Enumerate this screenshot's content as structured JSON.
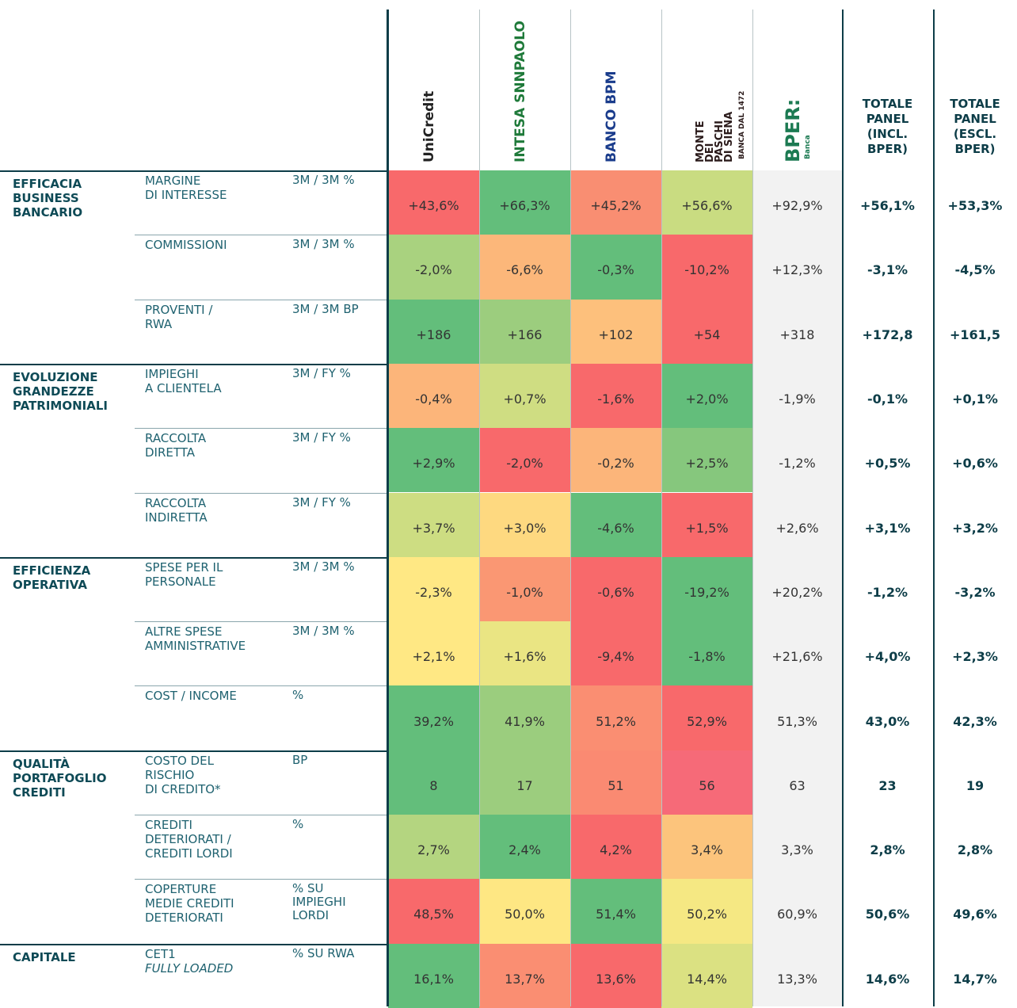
{
  "header": {
    "banks": [
      {
        "name": "UniCredit",
        "color": "#222222"
      },
      {
        "name": "INTESA SNNPAOLO",
        "color": "#1f7a3a"
      },
      {
        "name": "BANCO BPM",
        "color": "#1a3c8c"
      },
      {
        "name": "MONTE DEI PASCHI DI SIENA",
        "sub": "BANCA DAL 1472",
        "color": "#2a1a1a"
      },
      {
        "name": "BPER:",
        "sub": "Banca",
        "color": "#1c7a52"
      }
    ],
    "totals": [
      "TOTALE\nPANEL\n(INCL.\nBPER)",
      "TOTALE\nPANEL\n(ESCL.\nBPER)"
    ]
  },
  "groups": [
    {
      "label": "EFFICACIA\nBUSINESS\nBANCARIO",
      "rows": [
        {
          "metric": "MARGINE\nDI INTERESSE",
          "unit": "3M / 3M %",
          "values": [
            "+43,6%",
            "+66,3%",
            "+45,2%",
            "+56,6%",
            "+92,9%",
            "+56,1%",
            "+53,3%"
          ],
          "colors": [
            "#f8696b",
            "#63be7b",
            "#f98e72",
            "#c9dc81"
          ]
        },
        {
          "metric": "COMMISSIONI",
          "unit": "3M / 3M %",
          "values": [
            "-2,0%",
            "-6,6%",
            "-0,3%",
            "-10,2%",
            "+12,3%",
            "-3,1%",
            "-4,5%"
          ],
          "colors": [
            "#a9d27f",
            "#fcb77a",
            "#63be7b",
            "#f8696b"
          ]
        },
        {
          "metric": "PROVENTI /\nRWA",
          "unit": "3M / 3M BP",
          "values": [
            "+186",
            "+166",
            "+102",
            "+54",
            "+318",
            "+172,8",
            "+161,5"
          ],
          "colors": [
            "#63be7b",
            "#9ccd7e",
            "#fdc07c",
            "#f8696b"
          ]
        }
      ]
    },
    {
      "label": "EVOLUZIONE\nGRANDEZZE\nPATRIMONIALI",
      "rows": [
        {
          "metric": "IMPIEGHI\nA CLIENTELA",
          "unit": "3M / FY %",
          "values": [
            "-0,4%",
            "+0,7%",
            "-1,6%",
            "+2,0%",
            "-1,9%",
            "-0,1%",
            "+0,1%"
          ],
          "colors": [
            "#fcb57a",
            "#cfdd82",
            "#f8696b",
            "#63be7b"
          ]
        },
        {
          "metric": "RACCOLTA\nDIRETTA",
          "unit": "3M / FY %",
          "values": [
            "+2,9%",
            "-2,0%",
            "-0,2%",
            "+2,5%",
            "-1,2%",
            "+0,5%",
            "+0,6%"
          ],
          "colors": [
            "#63be7b",
            "#f8696b",
            "#fcb57a",
            "#86c77d"
          ]
        },
        {
          "metric": "RACCOLTA\nINDIRETTA",
          "unit": "3M / FY %",
          "values": [
            "+3,7%",
            "+3,0%",
            "-4,6%",
            "+1,5%",
            "+2,6%",
            "+3,1%",
            "+3,2%"
          ],
          "colors": [
            "#cddd82",
            "#fed980",
            "#63be7b",
            "#f8696b"
          ]
        }
      ]
    },
    {
      "label": "EFFICIENZA\nOPERATIVA",
      "rows": [
        {
          "metric": "SPESE PER IL\nPERSONALE",
          "unit": "3M / 3M %",
          "values": [
            "-2,3%",
            "-1,0%",
            "-0,6%",
            "-19,2%",
            "+20,2%",
            "-1,2%",
            "-3,2%"
          ],
          "colors": [
            "#ffe884",
            "#fa9773",
            "#f8696b",
            "#63be7b"
          ]
        },
        {
          "metric": "ALTRE SPESE\nAMMINISTRATIVE",
          "unit": "3M / 3M %",
          "values": [
            "+2,1%",
            "+1,6%",
            "-9,4%",
            "-1,8%",
            "+21,6%",
            "+4,0%",
            "+2,3%"
          ],
          "colors": [
            "#ffe884",
            "#eae583",
            "#f8696b",
            "#63be7b"
          ]
        },
        {
          "metric": "COST / INCOME",
          "unit": "%",
          "values": [
            "39,2%",
            "41,9%",
            "51,2%",
            "52,9%",
            "51,3%",
            "43,0%",
            "42,3%"
          ],
          "colors": [
            "#63be7b",
            "#9bcd7e",
            "#fa8e72",
            "#f8696b"
          ]
        }
      ]
    },
    {
      "label": "QUALITÀ\nPORTAFOGLIO\nCREDITI",
      "rows": [
        {
          "metric": "COSTO DEL\nRISCHIO\nDI CREDITO*",
          "unit": "BP",
          "values": [
            "8",
            "17",
            "51",
            "56",
            "63",
            "23",
            "19"
          ],
          "colors": [
            "#63be7b",
            "#9ccd7e",
            "#fa8a72",
            "#f66a78"
          ]
        },
        {
          "metric": "CREDITI\nDETERIORATI /\nCREDITI  LORDI",
          "unit": "%",
          "values": [
            "2,7%",
            "2,4%",
            "4,2%",
            "3,4%",
            "3,3%",
            "2,8%",
            "2,8%"
          ],
          "colors": [
            "#b4d580",
            "#63be7b",
            "#f8696b",
            "#fcc47c"
          ]
        },
        {
          "metric": "COPERTURE\nMEDIE CREDITI\nDETERIORATI",
          "unit": "% SU\nIMPIEGHI\nLORDI",
          "values": [
            "48,5%",
            "50,0%",
            "51,4%",
            "50,2%",
            "60,9%",
            "50,6%",
            "49,6%"
          ],
          "colors": [
            "#f8696b",
            "#fee783",
            "#63be7b",
            "#f5e883"
          ]
        }
      ]
    },
    {
      "label": "CAPITALE",
      "rows": [
        {
          "metric": "CET1",
          "metric_note": "FULLY LOADED",
          "unit": "% SU RWA",
          "values": [
            "16,1%",
            "13,7%",
            "13,6%",
            "14,4%",
            "13,3%",
            "14,6%",
            "14,7%"
          ],
          "colors": [
            "#63be7b",
            "#fa8e72",
            "#f8696b",
            "#dbe182"
          ]
        }
      ]
    }
  ]
}
